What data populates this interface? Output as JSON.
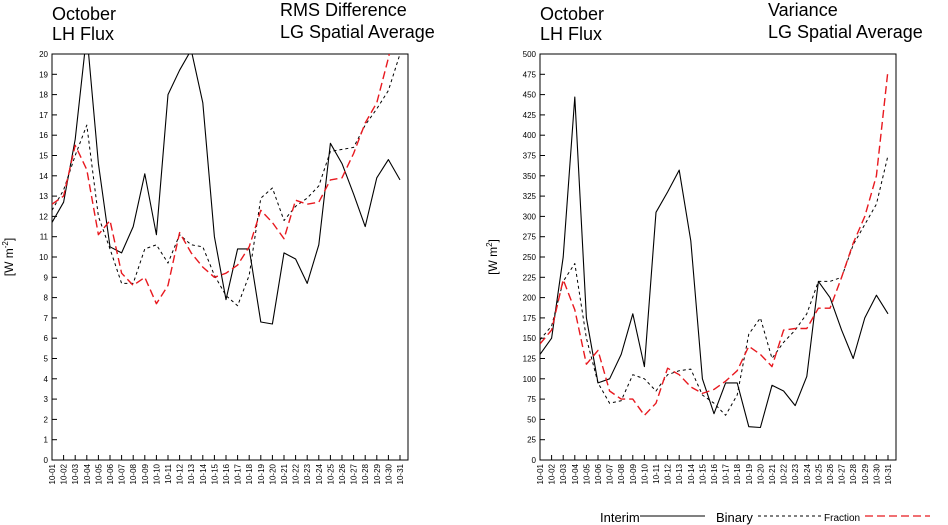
{
  "chart_data": [
    {
      "type": "line",
      "title_left": [
        "October",
        "LH Flux"
      ],
      "title_right": [
        "RMS Difference",
        "LG Spatial Average"
      ],
      "ylabel": "[W m",
      "ylabel_sup": "-2",
      "ylabel_close": "]",
      "ylim": [
        0,
        20
      ],
      "yticks": [
        "0",
        "1",
        "2",
        "3",
        "4",
        "5",
        "6",
        "7",
        "8",
        "9",
        "10",
        "11",
        "12",
        "13",
        "14",
        "15",
        "16",
        "17",
        "18",
        "19",
        "20"
      ],
      "categories": [
        "10-01",
        "10-02",
        "10-03",
        "10-04",
        "10-05",
        "10-06",
        "10-07",
        "10-08",
        "10-09",
        "10-10",
        "10-11",
        "10-12",
        "10-13",
        "10-14",
        "10-15",
        "10-16",
        "10-17",
        "10-18",
        "10-19",
        "10-20",
        "10-21",
        "10-22",
        "10-23",
        "10-24",
        "10-25",
        "10-26",
        "10-27",
        "10-28",
        "10-29",
        "10-30",
        "10-31"
      ],
      "series": [
        {
          "name": "Interim",
          "values": [
            11.7,
            12.7,
            15.8,
            21.0,
            14.6,
            10.5,
            10.2,
            11.5,
            14.1,
            11.1,
            18.0,
            19.2,
            20.2,
            17.6,
            11.0,
            7.9,
            10.4,
            10.4,
            6.8,
            6.7,
            10.2,
            9.9,
            8.7,
            10.6,
            15.6,
            14.6,
            13.1,
            11.5,
            13.9,
            14.8,
            13.8
          ]
        },
        {
          "name": "Binary",
          "values": [
            12.3,
            13.3,
            15.0,
            16.5,
            12.0,
            10.4,
            8.7,
            8.7,
            10.4,
            10.6,
            9.7,
            11.1,
            10.6,
            10.5,
            9.1,
            8.1,
            7.6,
            9.1,
            12.9,
            13.4,
            11.8,
            12.5,
            12.9,
            13.5,
            15.2,
            15.3,
            15.4,
            16.5,
            17.3,
            18.2,
            20.0
          ]
        },
        {
          "name": "Fraction",
          "values": [
            12.6,
            13.0,
            15.5,
            14.3,
            11.1,
            11.8,
            9.2,
            8.6,
            9.0,
            7.7,
            8.6,
            11.2,
            10.2,
            9.5,
            9.0,
            9.2,
            9.6,
            10.5,
            12.3,
            11.7,
            10.9,
            12.8,
            12.6,
            12.7,
            13.8,
            13.9,
            15.1,
            16.6,
            17.6,
            19.8,
            22.5
          ]
        }
      ]
    },
    {
      "type": "line",
      "title_left": [
        "October",
        "LH Flux"
      ],
      "title_right": [
        "Variance",
        "LG Spatial Average"
      ],
      "ylabel": "[W m",
      "ylabel_sup": "2",
      "ylabel_close": "]",
      "ylim": [
        0,
        500
      ],
      "yticks": [
        "0",
        "25",
        "50",
        "75",
        "100",
        "125",
        "150",
        "175",
        "200",
        "225",
        "250",
        "275",
        "300",
        "325",
        "350",
        "375",
        "400",
        "425",
        "450",
        "475",
        "500"
      ],
      "categories": [
        "10-01",
        "10-02",
        "10-03",
        "10-04",
        "10-05",
        "10-06",
        "10-07",
        "10-08",
        "10-09",
        "10-10",
        "10-11",
        "10-12",
        "10-13",
        "10-14",
        "10-15",
        "10-16",
        "10-17",
        "10-18",
        "10-19",
        "10-20",
        "10-21",
        "10-22",
        "10-23",
        "10-24",
        "10-25",
        "10-26",
        "10-27",
        "10-28",
        "10-29",
        "10-30",
        "10-31"
      ],
      "series": [
        {
          "name": "Interim",
          "values": [
            130,
            150,
            250,
            447,
            175,
            95,
            100,
            130,
            180,
            115,
            305,
            330,
            357,
            270,
            100,
            57,
            95,
            95,
            41,
            40,
            92,
            85,
            67,
            103,
            220,
            200,
            160,
            125,
            175,
            203,
            180
          ]
        },
        {
          "name": "Binary",
          "values": [
            148,
            165,
            220,
            242,
            150,
            95,
            70,
            73,
            105,
            100,
            85,
            105,
            110,
            112,
            80,
            70,
            55,
            80,
            155,
            175,
            125,
            145,
            160,
            180,
            220,
            220,
            225,
            265,
            290,
            315,
            375
          ]
        },
        {
          "name": "Fraction",
          "values": [
            143,
            160,
            222,
            185,
            118,
            135,
            85,
            75,
            75,
            55,
            70,
            113,
            105,
            90,
            82,
            87,
            97,
            110,
            140,
            130,
            115,
            160,
            162,
            162,
            187,
            187,
            225,
            267,
            300,
            350,
            480
          ]
        }
      ]
    }
  ],
  "legend": {
    "interim": "Interim",
    "binary": "Binary",
    "fraction": "Fraction"
  },
  "colors": {
    "interim": "#000000",
    "binary": "#000000",
    "fraction": "#e8191f"
  }
}
